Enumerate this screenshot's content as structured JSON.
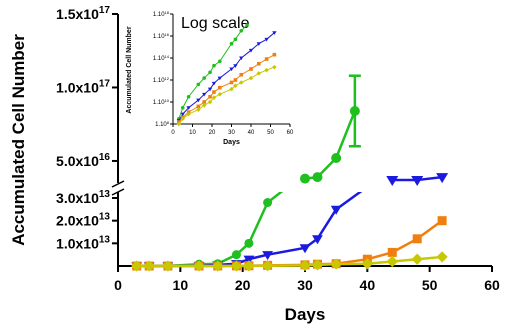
{
  "chart_data": [
    {
      "type": "line",
      "xlabel": "Days",
      "ylabel": "Accumulated Cell Number",
      "xlim": [
        0,
        60
      ],
      "x_ticks": [
        0,
        10,
        20,
        30,
        40,
        50,
        60
      ],
      "x_tick_labels": [
        "0",
        "10",
        "20",
        "30",
        "40",
        "50",
        "60"
      ],
      "y_axis_break": true,
      "y_lower_range": [
        0,
        30000000000000.0
      ],
      "y_lower_ticks": [
        10000000000000.0,
        20000000000000.0,
        30000000000000.0
      ],
      "y_lower_tick_labels": [
        {
          "mantissa": "1.0x10",
          "exp": "13"
        },
        {
          "mantissa": "2.0x10",
          "exp": "13"
        },
        {
          "mantissa": "3.0x10",
          "exp": "13"
        }
      ],
      "y_upper_range": [
        3.5e+16,
        1.5e+17
      ],
      "y_upper_ticks": [
        5e+16,
        1e+17,
        1.5e+17
      ],
      "y_upper_tick_labels": [
        {
          "mantissa": "5.0x10",
          "exp": "16"
        },
        {
          "mantissa": "1.0x10",
          "exp": "17"
        },
        {
          "mantissa": "1.5x10",
          "exp": "17"
        }
      ],
      "series": [
        {
          "color": "#1fbf1f",
          "marker": "circle",
          "points": [
            [
              3,
              200000000.0
            ],
            [
              5,
              3000000000.0
            ],
            [
              8,
              50000000000.0
            ],
            [
              13,
              800000000000.0
            ],
            [
              16,
              1000000000000.0
            ],
            [
              19,
              5000000000000.0
            ],
            [
              21,
              10000000000000.0
            ],
            [
              24,
              28000000000000.0
            ],
            [
              30,
              3.8e+16
            ],
            [
              32,
              3.9e+16
            ],
            [
              35,
              5.2e+16
            ],
            [
              38,
              8.4e+16
            ]
          ],
          "error_bar": {
            "x": 38,
            "low": 6e+16,
            "high": 1.08e+17
          }
        },
        {
          "color": "#1a1ae0",
          "marker": "triangle-down",
          "points": [
            [
              3,
              100000000.0
            ],
            [
              5,
              1000000000.0
            ],
            [
              8,
              10000000000.0
            ],
            [
              13,
              100000000000.0
            ],
            [
              16,
              500000000000.0
            ],
            [
              19,
              1000000000000.0
            ],
            [
              21,
              3000000000000.0
            ],
            [
              24,
              5000000000000.0
            ],
            [
              30,
              8000000000000.0
            ],
            [
              32,
              12000000000000.0
            ],
            [
              35,
              25000000000000.0
            ],
            [
              44,
              3.7e+16
            ],
            [
              48,
              3.7e+16
            ],
            [
              52,
              3.9e+16
            ]
          ]
        },
        {
          "color": "#f07f10",
          "marker": "square",
          "points": [
            [
              3,
              100000000.0
            ],
            [
              5,
              500000000.0
            ],
            [
              8,
              1000000000.0
            ],
            [
              13,
              5000000000.0
            ],
            [
              16,
              10000000000.0
            ],
            [
              19,
              50000000000.0
            ],
            [
              21,
              100000000000.0
            ],
            [
              24,
              300000000000.0
            ],
            [
              30,
              500000000000.0
            ],
            [
              32,
              800000000000.0
            ],
            [
              35,
              1000000000000.0
            ],
            [
              40,
              3000000000000.0
            ],
            [
              44,
              6000000000000.0
            ],
            [
              48,
              12000000000000.0
            ],
            [
              52,
              20000000000000.0
            ]
          ]
        },
        {
          "color": "#c8c800",
          "marker": "diamond",
          "points": [
            [
              3,
              100000000.0
            ],
            [
              5,
              300000000.0
            ],
            [
              8,
              600000000.0
            ],
            [
              13,
              1000000000.0
            ],
            [
              16,
              5000000000.0
            ],
            [
              19,
              10000000000.0
            ],
            [
              21,
              50000000000.0
            ],
            [
              24,
              100000000000.0
            ],
            [
              30,
              200000000000.0
            ],
            [
              32,
              500000000000.0
            ],
            [
              35,
              800000000000.0
            ],
            [
              40,
              1000000000000.0
            ],
            [
              44,
              2000000000000.0
            ],
            [
              48,
              3000000000000.0
            ],
            [
              52,
              4000000000000.0
            ]
          ]
        }
      ]
    },
    {
      "type": "line",
      "annotation": "Log scale",
      "xlabel": "Days",
      "ylabel": "Accumulated Cell Number",
      "yscale": "log",
      "xlim": [
        0,
        60
      ],
      "ylim": [
        100000000.0,
        1e+18
      ],
      "x_ticks": [
        0,
        10,
        20,
        30,
        40,
        50,
        60
      ],
      "x_tick_labels": [
        "0",
        "10",
        "20",
        "30",
        "40",
        "50",
        "60"
      ],
      "y_ticks": [
        100000000.0,
        10000000000.0,
        1000000000000.0,
        100000000000000.0,
        1e+16,
        1e+18
      ],
      "y_tick_labels": [
        {
          "mantissa": "1.10",
          "exp": "8"
        },
        {
          "mantissa": "1.10",
          "exp": "10"
        },
        {
          "mantissa": "1.10",
          "exp": "12"
        },
        {
          "mantissa": "1.10",
          "exp": "14"
        },
        {
          "mantissa": "1.10",
          "exp": "16"
        },
        {
          "mantissa": "1.10",
          "exp": "18"
        }
      ],
      "series": [
        {
          "color": "#1fbf1f",
          "marker": "circle",
          "points": [
            [
              3,
              300000000.0
            ],
            [
              5,
              3000000000.0
            ],
            [
              8,
              30000000000.0
            ],
            [
              13,
              400000000000.0
            ],
            [
              16,
              1500000000000.0
            ],
            [
              19,
              5000000000000.0
            ],
            [
              21,
              20000000000000.0
            ],
            [
              24,
              50000000000000.0
            ],
            [
              30,
              2000000000000000.0
            ],
            [
              32,
              5000000000000000.0
            ],
            [
              35,
              3e+16
            ],
            [
              38,
              1e+17
            ]
          ]
        },
        {
          "color": "#1a1ae0",
          "marker": "triangle-down",
          "points": [
            [
              3,
              200000000.0
            ],
            [
              5,
              800000000.0
            ],
            [
              8,
              3000000000.0
            ],
            [
              13,
              15000000000.0
            ],
            [
              16,
              50000000000.0
            ],
            [
              19,
              150000000000.0
            ],
            [
              21,
              500000000000.0
            ],
            [
              24,
              1500000000000.0
            ],
            [
              30,
              10000000000000.0
            ],
            [
              32,
              20000000000000.0
            ],
            [
              35,
              100000000000000.0
            ],
            [
              40,
              500000000000000.0
            ],
            [
              44,
              2000000000000000.0
            ],
            [
              48,
              5000000000000000.0
            ],
            [
              52,
              2e+16
            ]
          ]
        },
        {
          "color": "#f07f10",
          "marker": "square",
          "points": [
            [
              3,
              150000000.0
            ],
            [
              5,
              400000000.0
            ],
            [
              8,
              1200000000.0
            ],
            [
              13,
              4000000000.0
            ],
            [
              16,
              10000000000.0
            ],
            [
              19,
              30000000000.0
            ],
            [
              21,
              80000000000.0
            ],
            [
              24,
              200000000000.0
            ],
            [
              30,
              600000000000.0
            ],
            [
              32,
              1000000000000.0
            ],
            [
              35,
              3000000000000.0
            ],
            [
              40,
              10000000000000.0
            ],
            [
              44,
              30000000000000.0
            ],
            [
              48,
              80000000000000.0
            ],
            [
              52,
              200000000000000.0
            ]
          ]
        },
        {
          "color": "#c8c800",
          "marker": "diamond",
          "points": [
            [
              3,
              100000000.0
            ],
            [
              5,
              300000000.0
            ],
            [
              8,
              800000000.0
            ],
            [
              13,
              2000000000.0
            ],
            [
              16,
              5000000000.0
            ],
            [
              19,
              10000000000.0
            ],
            [
              21,
              25000000000.0
            ],
            [
              24,
              50000000000.0
            ],
            [
              30,
              150000000000.0
            ],
            [
              32,
              300000000000.0
            ],
            [
              35,
              600000000000.0
            ],
            [
              40,
              1500000000000.0
            ],
            [
              44,
              4000000000000.0
            ],
            [
              48,
              8000000000000.0
            ],
            [
              52,
              15000000000000.0
            ]
          ]
        }
      ]
    }
  ]
}
